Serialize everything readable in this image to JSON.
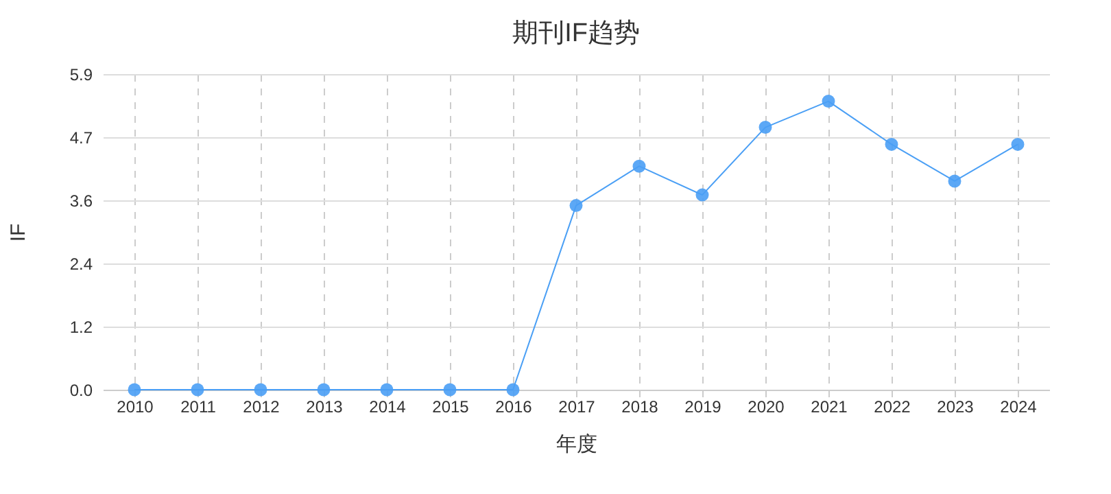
{
  "chart_data": {
    "type": "line",
    "title": "期刊IF趋势",
    "xlabel": "年度",
    "ylabel": "IF",
    "categories": [
      "2010",
      "2011",
      "2012",
      "2013",
      "2014",
      "2015",
      "2016",
      "2017",
      "2018",
      "2019",
      "2020",
      "2021",
      "2022",
      "2023",
      "2024"
    ],
    "series": [
      {
        "color": "#4a9ff5",
        "values": [
          0,
          0,
          0,
          0,
          0,
          0,
          0,
          3.46,
          4.2,
          3.66,
          4.93,
          5.42,
          4.61,
          3.92,
          4.61
        ]
      }
    ],
    "ylim": [
      0,
      5.93
    ],
    "yticks": [
      {
        "value": 0,
        "label": "0.0"
      },
      {
        "value": 1.186,
        "label": "1.2"
      },
      {
        "value": 2.372,
        "label": "2.4"
      },
      {
        "value": 3.558,
        "label": "3.6"
      },
      {
        "value": 4.744,
        "label": "4.7"
      },
      {
        "value": 5.93,
        "label": "5.9"
      }
    ],
    "grid": true,
    "marker": "circle",
    "line_style": "solid"
  }
}
